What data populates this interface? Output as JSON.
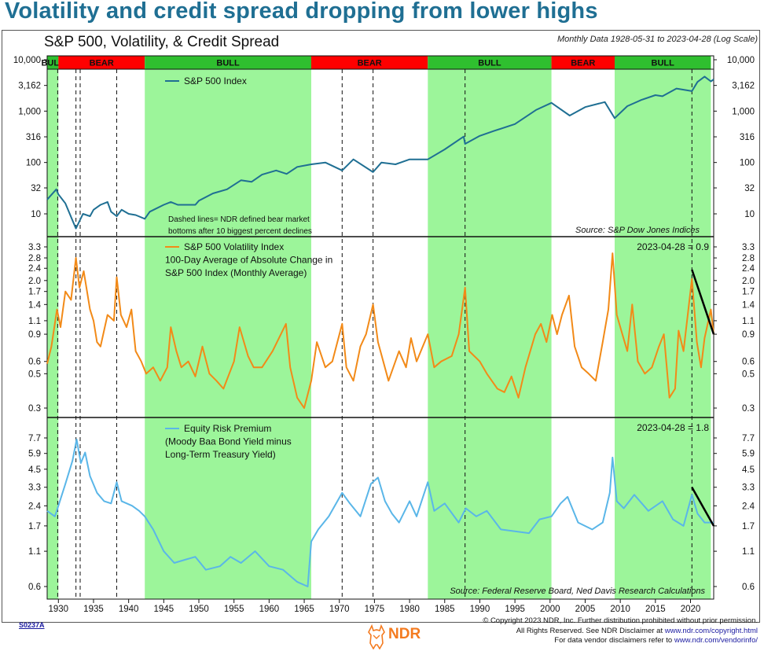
{
  "headline": "Volatility and credit spread dropping from lower highs",
  "chart_title": "S&P 500, Volatility, & Credit Spread",
  "subtitle": "Monthly Data 1928-05-31 to 2023-04-28 (Log Scale)",
  "footer": {
    "id": "S0237A",
    "line1": "© Copyright 2023 NDR, Inc. Further distribution prohibited without prior permission.",
    "line2a": "All Rights Reserved. See NDR Disclaimer at ",
    "line2b": "www.ndr.com/copyright.html",
    "line3a": "For data vendor disclaimers refer to ",
    "line3b": "www.ndr.com/vendorinfo/",
    "logo": "NDR"
  },
  "colors": {
    "bull": "#9cf59a",
    "bull_band": "#2fbf2f",
    "bear_band": "#ff0000",
    "spx": "#1f6f93",
    "vol": "#f28a18",
    "erp": "#5ab6e8",
    "headline": "#1f6f93"
  },
  "chart_data": {
    "type": "line",
    "x_ticks": [
      1930,
      1935,
      1940,
      1945,
      1950,
      1955,
      1960,
      1965,
      1970,
      1975,
      1980,
      1985,
      1990,
      1995,
      2000,
      2005,
      2010,
      2015,
      2020
    ],
    "x_range": [
      1928.4,
      2023.3
    ],
    "regimes": [
      {
        "label": "BULL",
        "start": 1928.4,
        "end": 1930.0,
        "type": "bull"
      },
      {
        "label": "BEAR",
        "start": 1930.0,
        "end": 1942.3,
        "type": "bear"
      },
      {
        "label": "BULL",
        "start": 1942.3,
        "end": 1966.0,
        "type": "bull"
      },
      {
        "label": "BEAR",
        "start": 1966.0,
        "end": 1982.6,
        "type": "bear"
      },
      {
        "label": "BULL",
        "start": 1982.6,
        "end": 2000.2,
        "type": "bull"
      },
      {
        "label": "BEAR",
        "start": 2000.2,
        "end": 2009.2,
        "type": "bear"
      },
      {
        "label": "BULL",
        "start": 2009.2,
        "end": 2022.9,
        "type": "bull"
      }
    ],
    "bear_bottoms": [
      1929.9,
      1932.5,
      1933.1,
      1938.3,
      1970.4,
      1974.8,
      1987.9,
      2020.2
    ],
    "annotation": "Dashed lines= NDR defined bear market bottoms after 10 biggest percent declines",
    "panels": [
      {
        "name": "spx",
        "scale": "log",
        "tick_labels": [
          "10,000",
          "3,162",
          "1,000",
          "316",
          "100",
          "32",
          "10"
        ],
        "tick_values": [
          10000,
          3162,
          1000,
          316,
          100,
          32,
          10
        ],
        "ylim": [
          3.5,
          10000
        ],
        "series": [
          {
            "name": "S&P 500 Index",
            "x": [
              1928.4,
              1929.7,
              1930.0,
              1931.0,
              1932.0,
              1932.5,
              1933.5,
              1934.5,
              1935.0,
              1936.0,
              1937.0,
              1937.5,
              1938.3,
              1939.0,
              1940.0,
              1941.0,
              1942.3,
              1943.0,
              1945.0,
              1946.0,
              1947.0,
              1949.5,
              1950.0,
              1952.0,
              1954.0,
              1956.0,
              1957.5,
              1959.0,
              1961.0,
              1962.5,
              1964.0,
              1966.0,
              1968.0,
              1970.4,
              1972.0,
              1974.8,
              1976.0,
              1978.0,
              1980.0,
              1982.6,
              1985.0,
              1987.7,
              1987.9,
              1990.0,
              1992.0,
              1995.0,
              1998.0,
              2000.2,
              2002.8,
              2005.0,
              2007.8,
              2009.2,
              2011.0,
              2013.0,
              2015.0,
              2016.0,
              2018.0,
              2020.2,
              2021.0,
              2022.0,
              2022.9,
              2023.3
            ],
            "values": [
              19,
              30,
              24,
              16,
              7.5,
              5.2,
              10,
              9,
              12,
              15,
              17,
              11,
              9,
              12,
              10,
              9.5,
              8,
              11,
              15,
              17,
              15,
              15,
              18,
              25,
              30,
              45,
              42,
              58,
              70,
              60,
              82,
              92,
              100,
              70,
              115,
              65,
              100,
              92,
              115,
              115,
              180,
              320,
              230,
              330,
              410,
              560,
              1050,
              1450,
              820,
              1200,
              1500,
              730,
              1250,
              1650,
              2050,
              1950,
              2750,
              2450,
              3700,
              4700,
              3800,
              4150
            ]
          }
        ],
        "source": "Source:  S&P Dow Jones Indices"
      },
      {
        "name": "vol",
        "scale": "log",
        "tick_labels": [
          "3.3",
          "2.8",
          "2.4",
          "2.0",
          "1.7",
          "1.4",
          "1.1",
          "0.9",
          "0.6",
          "0.5",
          "0.3"
        ],
        "tick_values": [
          3.3,
          2.8,
          2.4,
          2.0,
          1.7,
          1.4,
          1.1,
          0.9,
          0.6,
          0.5,
          0.3
        ],
        "ylim": [
          0.25,
          3.6
        ],
        "series": [
          {
            "name": "S&P 500 Volatility Index 100-Day Average of Absolute Change in S&P 500 Index (Monthly Average)",
            "x": [
              1928.4,
              1929.0,
              1929.8,
              1930.3,
              1931.0,
              1931.8,
              1932.5,
              1933.0,
              1933.6,
              1934.5,
              1935.0,
              1935.5,
              1936.0,
              1937.0,
              1937.9,
              1938.3,
              1938.9,
              1939.7,
              1940.4,
              1941.0,
              1941.8,
              1942.5,
              1943.5,
              1944.5,
              1945.5,
              1946.0,
              1946.8,
              1947.5,
              1948.5,
              1949.5,
              1950.5,
              1951.5,
              1952.5,
              1953.5,
              1955.0,
              1955.8,
              1957.0,
              1957.8,
              1959.0,
              1960.5,
              1962.4,
              1963.0,
              1964.0,
              1965.0,
              1966.0,
              1966.8,
              1968.0,
              1969.0,
              1970.4,
              1971.0,
              1972.0,
              1973.0,
              1973.8,
              1974.8,
              1975.5,
              1977.0,
              1978.5,
              1979.5,
              1980.2,
              1981.0,
              1982.6,
              1983.5,
              1984.5,
              1986.0,
              1987.0,
              1987.9,
              1988.5,
              1990.0,
              1991.0,
              1992.5,
              1993.5,
              1994.5,
              1995.5,
              1996.5,
              1997.9,
              1998.7,
              1999.5,
              2000.3,
              2001.0,
              2001.7,
              2002.7,
              2003.5,
              2004.5,
              2005.5,
              2006.5,
              2007.5,
              2008.3,
              2008.9,
              2009.5,
              2010.3,
              2011.0,
              2011.7,
              2012.5,
              2013.5,
              2014.5,
              2015.5,
              2016.2,
              2017.0,
              2017.8,
              2018.3,
              2019.0,
              2020.2,
              2020.9,
              2021.5,
              2022.0,
              2022.9,
              2023.3
            ],
            "values": [
              0.58,
              0.75,
              1.3,
              1.0,
              1.7,
              1.5,
              2.8,
              1.8,
              2.3,
              1.3,
              1.1,
              0.8,
              0.75,
              1.2,
              1.1,
              2.1,
              1.2,
              1.0,
              1.3,
              0.7,
              0.6,
              0.5,
              0.55,
              0.45,
              0.55,
              1.0,
              0.7,
              0.55,
              0.6,
              0.48,
              0.75,
              0.5,
              0.45,
              0.4,
              0.6,
              1.0,
              0.65,
              0.55,
              0.55,
              0.7,
              1.05,
              0.55,
              0.35,
              0.3,
              0.45,
              0.8,
              0.55,
              0.6,
              1.05,
              0.55,
              0.45,
              0.75,
              0.9,
              1.4,
              0.8,
              0.45,
              0.7,
              0.55,
              0.85,
              0.6,
              0.9,
              0.55,
              0.6,
              0.65,
              0.9,
              1.8,
              0.7,
              0.6,
              0.5,
              0.4,
              0.38,
              0.48,
              0.35,
              0.55,
              0.9,
              1.05,
              0.8,
              1.2,
              0.9,
              1.2,
              1.6,
              0.75,
              0.55,
              0.5,
              0.45,
              0.8,
              1.3,
              3.0,
              1.2,
              0.9,
              0.7,
              1.4,
              0.6,
              0.5,
              0.55,
              0.75,
              0.9,
              0.35,
              0.4,
              0.95,
              0.7,
              2.05,
              0.8,
              0.55,
              0.85,
              1.3,
              0.9
            ]
          }
        ],
        "latest_label": "2023-04-28 = 0.9",
        "trend_line": {
          "x": [
            2020.2,
            2023.3
          ],
          "values": [
            2.35,
            0.9
          ]
        }
      },
      {
        "name": "erp",
        "scale": "log",
        "tick_labels": [
          "7.7",
          "5.9",
          "4.5",
          "3.3",
          "2.4",
          "1.7",
          "1.1",
          "0.6"
        ],
        "tick_values": [
          7.7,
          5.9,
          4.5,
          3.3,
          2.4,
          1.7,
          1.1,
          0.6
        ],
        "ylim": [
          0.5,
          9.5
        ],
        "series": [
          {
            "name": "Equity Risk Premium (Moody Baa Bond Yield minus Long-Term Treasury Yield)",
            "x": [
              1928.4,
              1929.5,
              1930.0,
              1931.0,
              1932.0,
              1932.6,
              1933.2,
              1933.8,
              1934.5,
              1935.5,
              1936.5,
              1937.5,
              1938.3,
              1939.0,
              1940.5,
              1941.5,
              1942.3,
              1943.5,
              1945.0,
              1946.5,
              1948.0,
              1949.5,
              1951.0,
              1953.0,
              1954.5,
              1956.0,
              1958.0,
              1960.0,
              1962.0,
              1964.0,
              1965.5,
              1966.0,
              1967.0,
              1968.5,
              1970.4,
              1971.5,
              1973.0,
              1974.5,
              1975.5,
              1976.5,
              1977.5,
              1978.5,
              1980.0,
              1981.0,
              1982.6,
              1983.5,
              1985.0,
              1987.0,
              1988.0,
              1989.5,
              1991.0,
              1993.0,
              1995.0,
              1997.0,
              1998.5,
              2000.2,
              2001.5,
              2002.5,
              2004.0,
              2006.0,
              2007.5,
              2008.5,
              2008.9,
              2009.5,
              2010.5,
              2012.0,
              2014.0,
              2016.0,
              2017.5,
              2019.0,
              2020.2,
              2021.0,
              2022.0,
              2022.9,
              2023.3
            ],
            "values": [
              2.2,
              2.0,
              2.4,
              3.5,
              5.2,
              7.5,
              5.0,
              6.0,
              4.0,
              3.0,
              2.6,
              2.5,
              3.6,
              2.6,
              2.4,
              2.2,
              2.0,
              1.6,
              1.1,
              0.9,
              0.95,
              1.0,
              0.8,
              0.85,
              1.0,
              0.9,
              1.1,
              0.85,
              0.8,
              0.65,
              0.6,
              1.3,
              1.6,
              2.0,
              3.0,
              2.5,
              2.0,
              3.5,
              3.9,
              2.6,
              2.1,
              1.8,
              2.6,
              2.0,
              3.6,
              2.2,
              2.5,
              1.8,
              2.3,
              2.0,
              2.2,
              1.6,
              1.55,
              1.5,
              1.9,
              2.0,
              2.5,
              2.8,
              1.8,
              1.6,
              1.8,
              3.0,
              5.5,
              2.6,
              2.3,
              2.9,
              2.2,
              2.6,
              1.9,
              1.7,
              2.9,
              2.1,
              1.8,
              1.8,
              1.8
            ]
          }
        ],
        "latest_label": "2023-04-28 = 1.8",
        "trend_line": {
          "x": [
            2020.2,
            2023.3
          ],
          "values": [
            3.3,
            1.7
          ]
        },
        "source": "Source: Federal Reserve Board, Ned Davis Research Calculations"
      }
    ]
  }
}
